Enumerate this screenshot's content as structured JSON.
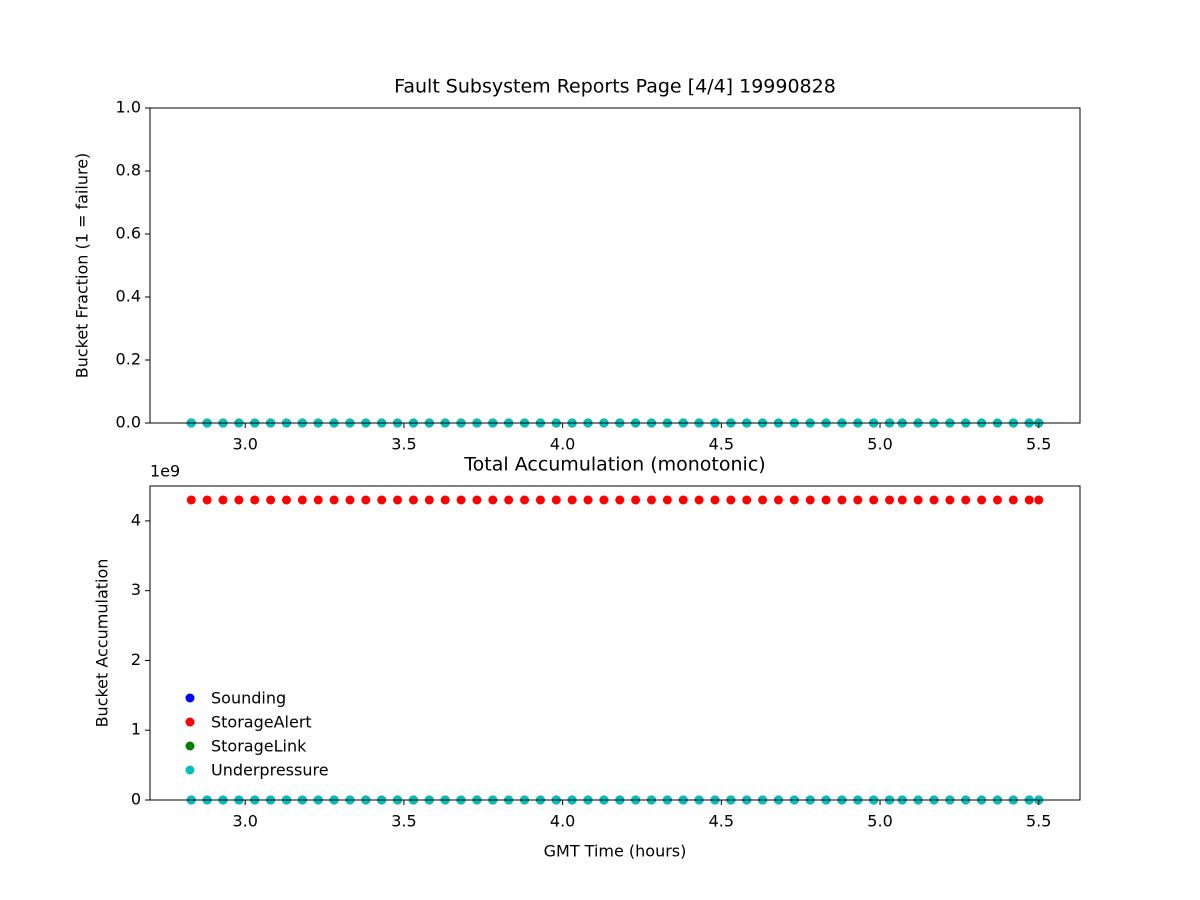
{
  "chart_data": [
    {
      "type": "scatter",
      "title": "Fault Subsystem Reports Page [4/4] 19990828",
      "y_label": "Bucket Fraction (1 = failure)",
      "x": [
        2.83,
        2.88,
        2.93,
        2.98,
        3.03,
        3.08,
        3.13,
        3.18,
        3.23,
        3.28,
        3.33,
        3.38,
        3.43,
        3.48,
        3.53,
        3.58,
        3.63,
        3.68,
        3.73,
        3.78,
        3.83,
        3.88,
        3.93,
        3.98,
        4.03,
        4.08,
        4.13,
        4.18,
        4.23,
        4.28,
        4.33,
        4.38,
        4.43,
        4.48,
        4.53,
        4.58,
        4.63,
        4.68,
        4.73,
        4.78,
        4.83,
        4.88,
        4.93,
        4.98,
        5.03,
        5.07,
        5.12,
        5.17,
        5.22,
        5.27,
        5.32,
        5.37,
        5.42,
        5.47,
        5.5
      ],
      "series": [
        {
          "color": "#0000ff",
          "values": [
            0,
            0,
            0,
            0,
            0,
            0,
            0,
            0,
            0,
            0,
            0,
            0,
            0,
            0,
            0,
            0,
            0,
            0,
            0,
            0,
            0,
            0,
            0,
            0,
            0,
            0,
            0,
            0,
            0,
            0,
            0,
            0,
            0,
            0,
            0,
            0,
            0,
            0,
            0,
            0,
            0,
            0,
            0,
            0,
            0,
            0,
            0,
            0,
            0,
            0,
            0,
            0,
            0,
            0,
            0
          ]
        },
        {
          "color": "#ff0000",
          "values": [
            0,
            0,
            0,
            0,
            0,
            0,
            0,
            0,
            0,
            0,
            0,
            0,
            0,
            0,
            0,
            0,
            0,
            0,
            0,
            0,
            0,
            0,
            0,
            0,
            0,
            0,
            0,
            0,
            0,
            0,
            0,
            0,
            0,
            0,
            0,
            0,
            0,
            0,
            0,
            0,
            0,
            0,
            0,
            0,
            0,
            0,
            0,
            0,
            0,
            0,
            0,
            0,
            0,
            0,
            0
          ]
        },
        {
          "color": "#008000",
          "values": [
            0,
            0,
            0,
            0,
            0,
            0,
            0,
            0,
            0,
            0,
            0,
            0,
            0,
            0,
            0,
            0,
            0,
            0,
            0,
            0,
            0,
            0,
            0,
            0,
            0,
            0,
            0,
            0,
            0,
            0,
            0,
            0,
            0,
            0,
            0,
            0,
            0,
            0,
            0,
            0,
            0,
            0,
            0,
            0,
            0,
            0,
            0,
            0,
            0,
            0,
            0,
            0,
            0,
            0,
            0
          ]
        },
        {
          "color": "#00bfbf",
          "values": [
            0,
            0,
            0,
            0,
            0,
            0,
            0,
            0,
            0,
            0,
            0,
            0,
            0,
            0,
            0,
            0,
            0,
            0,
            0,
            0,
            0,
            0,
            0,
            0,
            0,
            0,
            0,
            0,
            0,
            0,
            0,
            0,
            0,
            0,
            0,
            0,
            0,
            0,
            0,
            0,
            0,
            0,
            0,
            0,
            0,
            0,
            0,
            0,
            0,
            0,
            0,
            0,
            0,
            0,
            0
          ]
        }
      ],
      "xlim": [
        2.7,
        5.63
      ],
      "xticks": [
        {
          "value": 3,
          "label": "3.0"
        },
        {
          "value": 3.5,
          "label": "3.5"
        },
        {
          "value": 4,
          "label": "4.0"
        },
        {
          "value": 4.5,
          "label": "4.5"
        },
        {
          "value": 5,
          "label": "5.0"
        },
        {
          "value": 5.5,
          "label": "5.5"
        }
      ],
      "ylim": [
        0,
        1
      ],
      "yticks": [
        {
          "value": 0,
          "label": "0.0"
        },
        {
          "value": 0.2,
          "label": "0.2"
        },
        {
          "value": 0.4,
          "label": "0.4"
        },
        {
          "value": 0.6,
          "label": "0.6"
        },
        {
          "value": 0.8,
          "label": "0.8"
        },
        {
          "value": 1,
          "label": "1.0"
        }
      ]
    },
    {
      "type": "scatter",
      "title": "Total Accumulation (monotonic)",
      "x_label": "GMT Time (hours)",
      "y_label": "Bucket Accumulation",
      "y_offset_label": "1e9",
      "x": [
        2.83,
        2.88,
        2.93,
        2.98,
        3.03,
        3.08,
        3.13,
        3.18,
        3.23,
        3.28,
        3.33,
        3.38,
        3.43,
        3.48,
        3.53,
        3.58,
        3.63,
        3.68,
        3.73,
        3.78,
        3.83,
        3.88,
        3.93,
        3.98,
        4.03,
        4.08,
        4.13,
        4.18,
        4.23,
        4.28,
        4.33,
        4.38,
        4.43,
        4.48,
        4.53,
        4.58,
        4.63,
        4.68,
        4.73,
        4.78,
        4.83,
        4.88,
        4.93,
        4.98,
        5.03,
        5.07,
        5.12,
        5.17,
        5.22,
        5.27,
        5.32,
        5.37,
        5.42,
        5.47,
        5.5
      ],
      "series": [
        {
          "name": "Sounding",
          "color": "#0000ff",
          "values": [
            0,
            0,
            0,
            0,
            0,
            0,
            0,
            0,
            0,
            0,
            0,
            0,
            0,
            0,
            0,
            0,
            0,
            0,
            0,
            0,
            0,
            0,
            0,
            0,
            0,
            0,
            0,
            0,
            0,
            0,
            0,
            0,
            0,
            0,
            0,
            0,
            0,
            0,
            0,
            0,
            0,
            0,
            0,
            0,
            0,
            0,
            0,
            0,
            0,
            0,
            0,
            0,
            0,
            0,
            0
          ]
        },
        {
          "name": "StorageAlert",
          "color": "#ff0000",
          "values": [
            4300000000,
            4300000000,
            4300000000,
            4300000000,
            4300000000,
            4300000000,
            4300000000,
            4300000000,
            4300000000,
            4300000000,
            4300000000,
            4300000000,
            4300000000,
            4300000000,
            4300000000,
            4300000000,
            4300000000,
            4300000000,
            4300000000,
            4300000000,
            4300000000,
            4300000000,
            4300000000,
            4300000000,
            4300000000,
            4300000000,
            4300000000,
            4300000000,
            4300000000,
            4300000000,
            4300000000,
            4300000000,
            4300000000,
            4300000000,
            4300000000,
            4300000000,
            4300000000,
            4300000000,
            4300000000,
            4300000000,
            4300000000,
            4300000000,
            4300000000,
            4300000000,
            4300000000,
            4300000000,
            4300000000,
            4300000000,
            4300000000,
            4300000000,
            4300000000,
            4300000000,
            4300000000,
            4300000000,
            4300000000
          ]
        },
        {
          "name": "StorageLink",
          "color": "#008000",
          "values": [
            0,
            0,
            0,
            0,
            0,
            0,
            0,
            0,
            0,
            0,
            0,
            0,
            0,
            0,
            0,
            0,
            0,
            0,
            0,
            0,
            0,
            0,
            0,
            0,
            0,
            0,
            0,
            0,
            0,
            0,
            0,
            0,
            0,
            0,
            0,
            0,
            0,
            0,
            0,
            0,
            0,
            0,
            0,
            0,
            0,
            0,
            0,
            0,
            0,
            0,
            0,
            0,
            0,
            0,
            0
          ]
        },
        {
          "name": "Underpressure",
          "color": "#00bfbf",
          "values": [
            0,
            0,
            0,
            0,
            0,
            0,
            0,
            0,
            0,
            0,
            0,
            0,
            0,
            0,
            0,
            0,
            0,
            0,
            0,
            0,
            0,
            0,
            0,
            0,
            0,
            0,
            0,
            0,
            0,
            0,
            0,
            0,
            0,
            0,
            0,
            0,
            0,
            0,
            0,
            0,
            0,
            0,
            0,
            0,
            0,
            0,
            0,
            0,
            0,
            0,
            0,
            0,
            0,
            0,
            0
          ]
        }
      ],
      "legend": "lower left",
      "xlim": [
        2.7,
        5.63
      ],
      "xticks": [
        {
          "value": 3,
          "label": "3.0"
        },
        {
          "value": 3.5,
          "label": "3.5"
        },
        {
          "value": 4,
          "label": "4.0"
        },
        {
          "value": 4.5,
          "label": "4.5"
        },
        {
          "value": 5,
          "label": "5.0"
        },
        {
          "value": 5.5,
          "label": "5.5"
        }
      ],
      "ylim": [
        0,
        4500000000
      ],
      "yticks": [
        0,
        {
          "value": 1000000000,
          "label": "1"
        },
        {
          "value": 2000000000,
          "label": "2"
        },
        {
          "value": 3000000000,
          "label": "3"
        },
        {
          "value": 4000000000,
          "label": "4"
        }
      ]
    }
  ]
}
